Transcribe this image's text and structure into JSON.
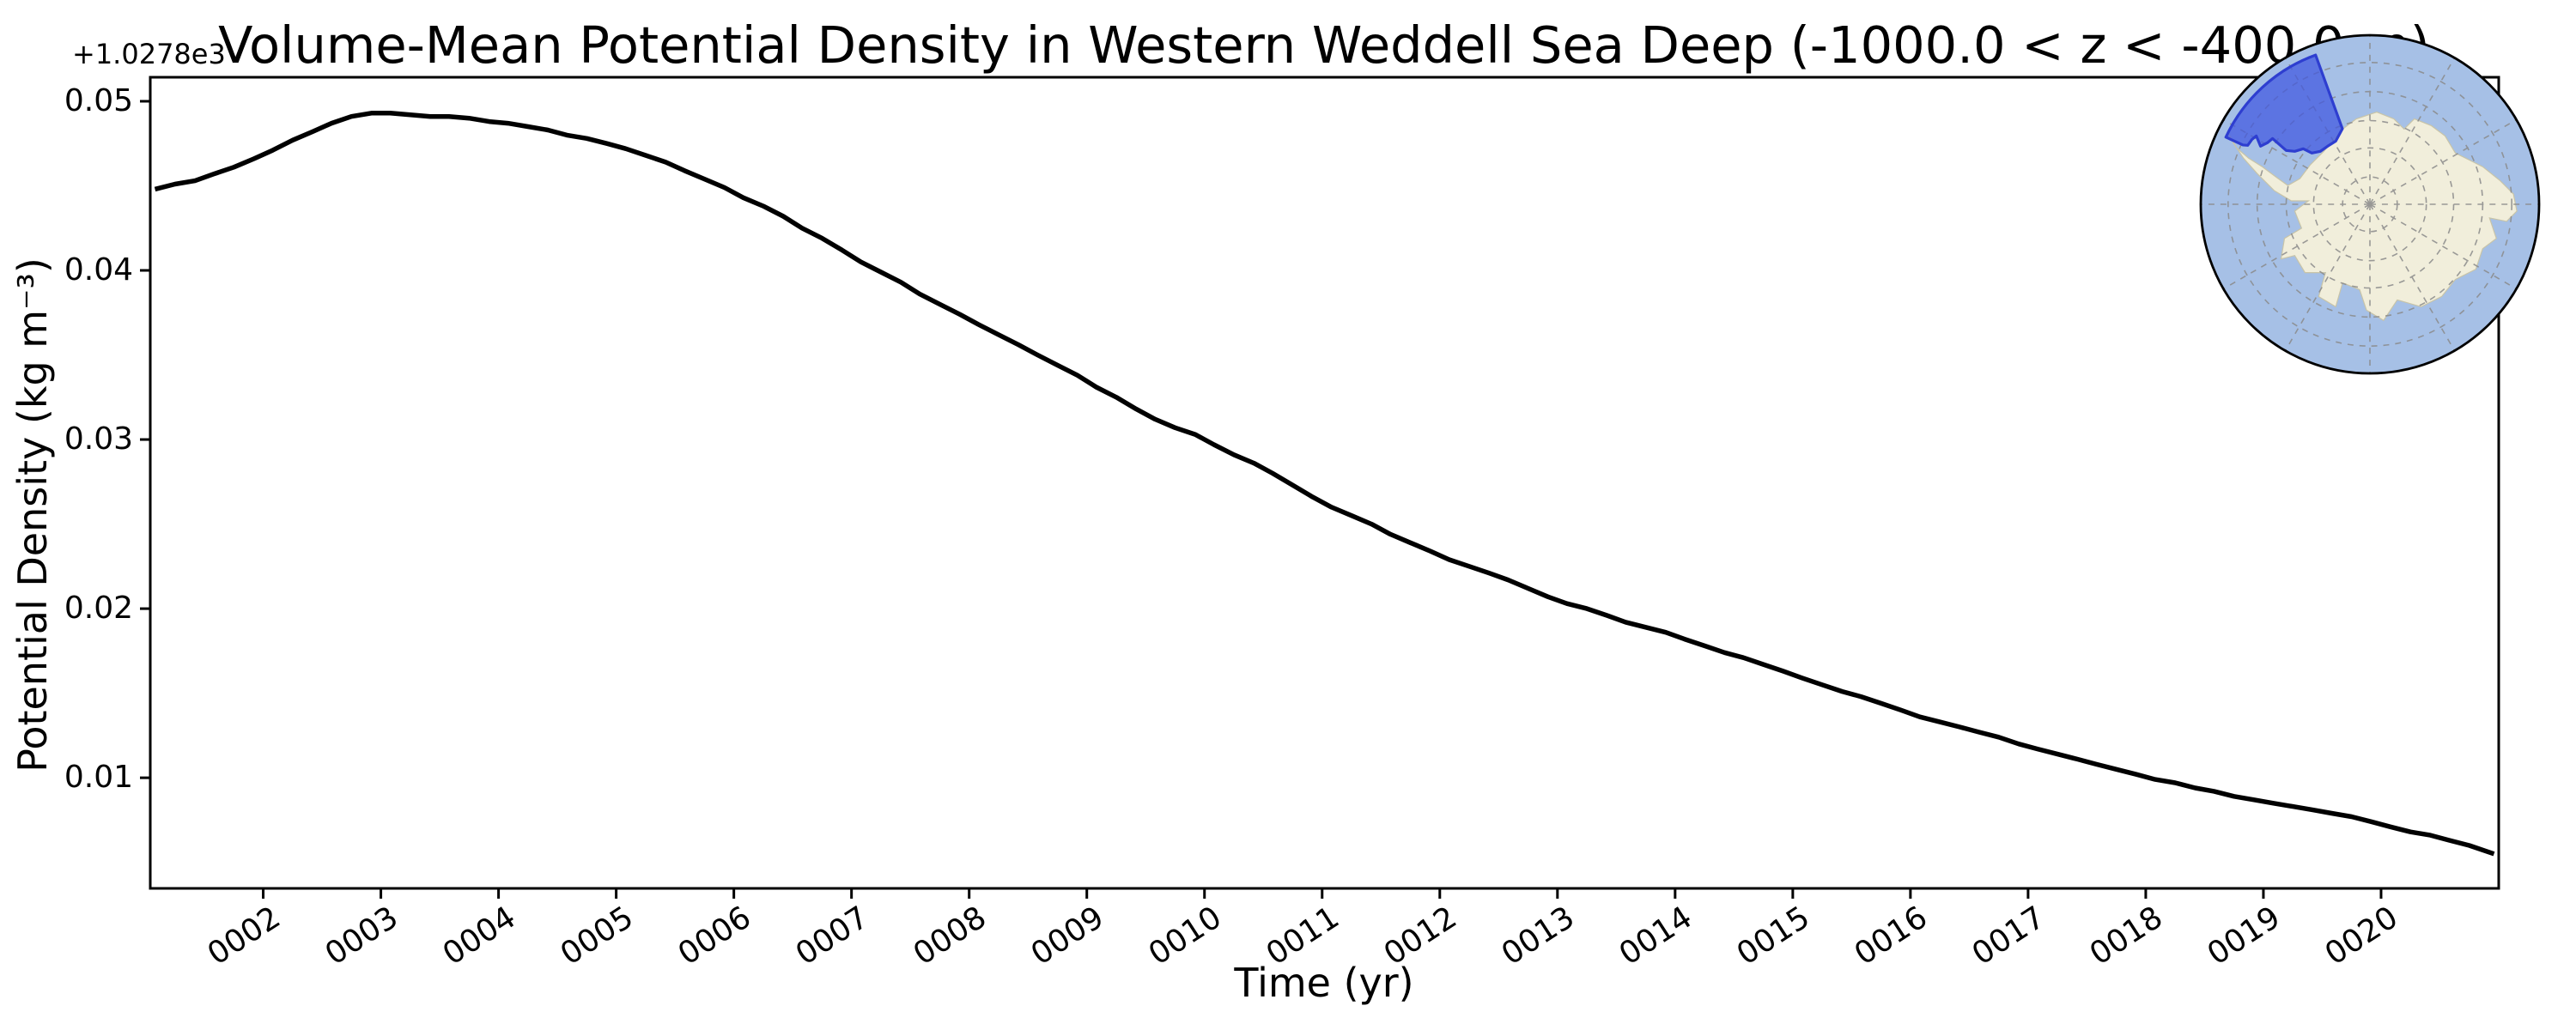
{
  "figure": {
    "title": "Volume-Mean Potential Density in Western Weddell Sea Deep (-1000.0 < z < -400.0 m)",
    "xlabel": "Time (yr)",
    "ylabel": "Potential Density (kg m⁻³)",
    "y_offset_text": "+1.0278e3"
  },
  "chart_data": {
    "type": "line",
    "title": "Volume-Mean Potential Density in Western Weddell Sea Deep (-1000.0 < z < -400.0 m)",
    "xlabel": "Time (yr)",
    "ylabel": "Potential Density (kg m-3)",
    "y_axis_offset": 1027.8,
    "xlim": [
      1.04,
      21.0
    ],
    "ylim": [
      0.00346,
      0.05142
    ],
    "grid": false,
    "legend": "none",
    "line_color": "#000000",
    "line_width": 5.5,
    "x_tick_values": [
      2,
      3,
      4,
      5,
      6,
      7,
      8,
      9,
      10,
      11,
      12,
      13,
      14,
      15,
      16,
      17,
      18,
      19,
      20
    ],
    "x_tick_labels": [
      "0002",
      "0003",
      "0004",
      "0005",
      "0006",
      "0007",
      "0008",
      "0009",
      "0010",
      "0011",
      "0012",
      "0013",
      "0014",
      "0015",
      "0016",
      "0017",
      "0018",
      "0019",
      "0020"
    ],
    "y_tick_values": [
      0.01,
      0.02,
      0.03,
      0.04,
      0.05
    ],
    "y_tick_labels": [
      "0.01",
      "0.02",
      "0.03",
      "0.04",
      "0.05"
    ],
    "series": [
      {
        "name": "volume-mean potential density (+1027.8 kg m-3)",
        "points": [
          [
            1.08,
            0.0448
          ],
          [
            1.25,
            0.0451
          ],
          [
            1.42,
            0.0453
          ],
          [
            1.58,
            0.0457
          ],
          [
            1.75,
            0.0461
          ],
          [
            1.92,
            0.0466
          ],
          [
            2.08,
            0.0471
          ],
          [
            2.25,
            0.0477
          ],
          [
            2.42,
            0.0482
          ],
          [
            2.58,
            0.0487
          ],
          [
            2.75,
            0.0491
          ],
          [
            2.92,
            0.0493
          ],
          [
            3.08,
            0.0493
          ],
          [
            3.25,
            0.0492
          ],
          [
            3.42,
            0.0491
          ],
          [
            3.58,
            0.0491
          ],
          [
            3.75,
            0.049
          ],
          [
            3.92,
            0.0488
          ],
          [
            4.08,
            0.0487
          ],
          [
            4.25,
            0.0485
          ],
          [
            4.42,
            0.0483
          ],
          [
            4.58,
            0.048
          ],
          [
            4.75,
            0.0478
          ],
          [
            4.92,
            0.0475
          ],
          [
            5.08,
            0.0472
          ],
          [
            5.25,
            0.0468
          ],
          [
            5.42,
            0.0464
          ],
          [
            5.58,
            0.0459
          ],
          [
            5.75,
            0.0454
          ],
          [
            5.92,
            0.0449
          ],
          [
            6.08,
            0.0443
          ],
          [
            6.25,
            0.0438
          ],
          [
            6.42,
            0.0432
          ],
          [
            6.58,
            0.0425
          ],
          [
            6.75,
            0.0419
          ],
          [
            6.92,
            0.0412
          ],
          [
            7.08,
            0.0405
          ],
          [
            7.25,
            0.0399
          ],
          [
            7.42,
            0.0393
          ],
          [
            7.58,
            0.0386
          ],
          [
            7.75,
            0.038
          ],
          [
            7.92,
            0.0374
          ],
          [
            8.08,
            0.0368
          ],
          [
            8.25,
            0.0362
          ],
          [
            8.42,
            0.0356
          ],
          [
            8.58,
            0.035
          ],
          [
            8.75,
            0.0344
          ],
          [
            8.92,
            0.0338
          ],
          [
            9.08,
            0.0331
          ],
          [
            9.25,
            0.0325
          ],
          [
            9.42,
            0.0318
          ],
          [
            9.58,
            0.0312
          ],
          [
            9.75,
            0.0307
          ],
          [
            9.92,
            0.0303
          ],
          [
            10.08,
            0.0297
          ],
          [
            10.25,
            0.0291
          ],
          [
            10.42,
            0.0286
          ],
          [
            10.58,
            0.028
          ],
          [
            10.75,
            0.0273
          ],
          [
            10.92,
            0.0266
          ],
          [
            11.08,
            0.026
          ],
          [
            11.25,
            0.0255
          ],
          [
            11.42,
            0.025
          ],
          [
            11.58,
            0.0244
          ],
          [
            11.75,
            0.0239
          ],
          [
            11.92,
            0.0234
          ],
          [
            12.08,
            0.0229
          ],
          [
            12.25,
            0.0225
          ],
          [
            12.42,
            0.0221
          ],
          [
            12.58,
            0.0217
          ],
          [
            12.75,
            0.0212
          ],
          [
            12.92,
            0.0207
          ],
          [
            13.08,
            0.0203
          ],
          [
            13.25,
            0.02
          ],
          [
            13.42,
            0.0196
          ],
          [
            13.58,
            0.0192
          ],
          [
            13.75,
            0.0189
          ],
          [
            13.92,
            0.0186
          ],
          [
            14.08,
            0.0182
          ],
          [
            14.25,
            0.0178
          ],
          [
            14.42,
            0.0174
          ],
          [
            14.58,
            0.0171
          ],
          [
            14.75,
            0.0167
          ],
          [
            14.92,
            0.0163
          ],
          [
            15.08,
            0.0159
          ],
          [
            15.25,
            0.0155
          ],
          [
            15.42,
            0.0151
          ],
          [
            15.58,
            0.0148
          ],
          [
            15.75,
            0.0144
          ],
          [
            15.92,
            0.014
          ],
          [
            16.08,
            0.0136
          ],
          [
            16.25,
            0.0133
          ],
          [
            16.42,
            0.013
          ],
          [
            16.58,
            0.0127
          ],
          [
            16.75,
            0.0124
          ],
          [
            16.92,
            0.012
          ],
          [
            17.08,
            0.0117
          ],
          [
            17.25,
            0.0114
          ],
          [
            17.42,
            0.0111
          ],
          [
            17.58,
            0.0108
          ],
          [
            17.75,
            0.0105
          ],
          [
            17.92,
            0.0102
          ],
          [
            18.08,
            0.0099
          ],
          [
            18.25,
            0.0097
          ],
          [
            18.42,
            0.0094
          ],
          [
            18.58,
            0.0092
          ],
          [
            18.75,
            0.0089
          ],
          [
            18.92,
            0.0087
          ],
          [
            19.08,
            0.0085
          ],
          [
            19.25,
            0.0083
          ],
          [
            19.42,
            0.0081
          ],
          [
            19.58,
            0.0079
          ],
          [
            19.75,
            0.0077
          ],
          [
            19.92,
            0.0074
          ],
          [
            20.08,
            0.0071
          ],
          [
            20.25,
            0.0068
          ],
          [
            20.42,
            0.0066
          ],
          [
            20.58,
            0.0063
          ],
          [
            20.75,
            0.006
          ],
          [
            20.96,
            0.0055
          ]
        ]
      }
    ]
  },
  "inset_map": {
    "projection": "south-polar-stereographic",
    "highlight_region": "Western Weddell Sea",
    "colors": {
      "ocean": "#a6c0e6",
      "land": "#f1eedb",
      "land_edge": "#c8c4a8",
      "region_fill": "#4056e0",
      "region_fill_opacity": 0.72,
      "region_border": "#2e3ed0",
      "graticule": "#8a8a8a",
      "border": "#000000"
    }
  }
}
